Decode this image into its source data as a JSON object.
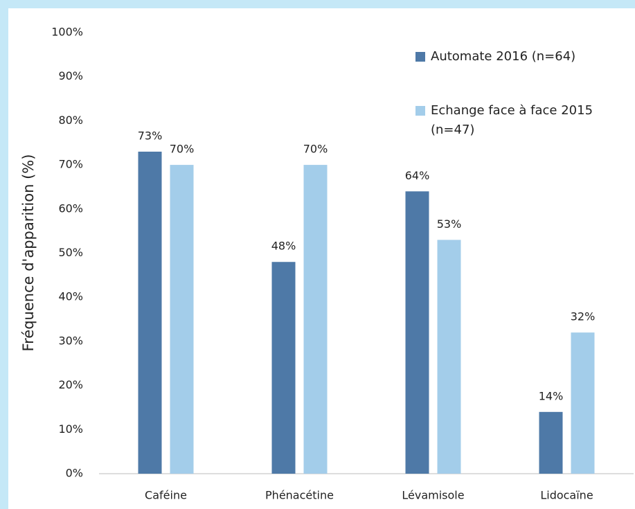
{
  "chart_data": {
    "type": "bar",
    "y_label": "Fréquence d'apparition (%)",
    "categories": [
      "Caféine",
      "Phénacétine",
      "Lévamisole",
      "Lidocaïne"
    ],
    "series": [
      {
        "name": "Automate 2016 (n=64)",
        "color": "#4e79a7",
        "values": [
          73,
          48,
          64,
          14
        ],
        "value_labels": [
          "73%",
          "48%",
          "64%",
          "14%"
        ]
      },
      {
        "name": "Echange face à face 2015 (n=47)",
        "color": "#a3cdea",
        "values": [
          70,
          70,
          53,
          32
        ],
        "value_labels": [
          "70%",
          "70%",
          "53%",
          "32%"
        ]
      }
    ],
    "ylim": [
      0,
      100
    ],
    "yticks": [
      {
        "value": 0,
        "label": "0%"
      },
      {
        "value": 10,
        "label": "10%"
      },
      {
        "value": 20,
        "label": "20%"
      },
      {
        "value": 30,
        "label": "30%"
      },
      {
        "value": 40,
        "label": "40%"
      },
      {
        "value": 50,
        "label": "50%"
      },
      {
        "value": 60,
        "label": "60%"
      },
      {
        "value": 70,
        "label": "70%"
      },
      {
        "value": 80,
        "label": "80%"
      },
      {
        "value": 90,
        "label": "90%"
      },
      {
        "value": 100,
        "label": "100%"
      }
    ],
    "grid": false,
    "legend": "top-right"
  }
}
